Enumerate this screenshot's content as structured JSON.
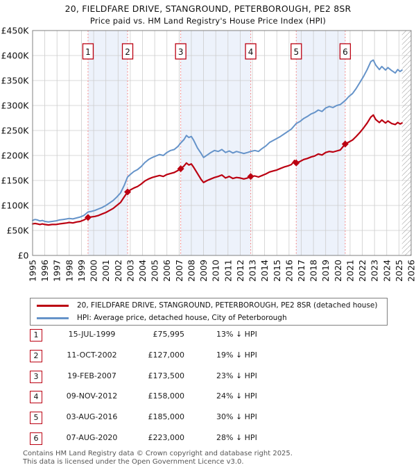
{
  "title": "20, FIELDFARE DRIVE, STANGROUND, PETERBOROUGH, PE2 8SR",
  "subtitle": "Price paid vs. HM Land Registry's House Price Index (HPI)",
  "legend": {
    "property_label": "20, FIELDFARE DRIVE, STANGROUND, PETERBOROUGH, PE2 8SR (detached house)",
    "hpi_label": "HPI: Average price, detached house, City of Peterborough"
  },
  "colors": {
    "property": "#bb0011",
    "hpi": "#6593c9",
    "sale_dash": "#f58a8a",
    "band": "#edf2fb",
    "grid": "#cccccc",
    "border": "#808080",
    "hatch": "#bbbbbb",
    "marker_box_border": "#bb0011",
    "text": "#111111"
  },
  "chart_data": {
    "type": "line",
    "title": "20, FIELDFARE DRIVE, STANGROUND, PETERBOROUGH, PE2 8SR",
    "subtitle": "Price paid vs. HM Land Registry's House Price Index (HPI)",
    "xlabel": "",
    "ylabel": "",
    "x_range": [
      1995,
      2026
    ],
    "y_range": [
      0,
      450
    ],
    "y_unit": "thousand GBP",
    "grid": true,
    "legend_position": "below",
    "x_ticks": [
      1995,
      1996,
      1997,
      1998,
      1999,
      2000,
      2001,
      2002,
      2003,
      2004,
      2005,
      2006,
      2007,
      2008,
      2009,
      2010,
      2011,
      2012,
      2013,
      2014,
      2015,
      2016,
      2017,
      2018,
      2019,
      2020,
      2021,
      2022,
      2023,
      2024,
      2025,
      2026
    ],
    "y_ticks": [
      {
        "v": 0,
        "label": "£0"
      },
      {
        "v": 50,
        "label": "£50K"
      },
      {
        "v": 100,
        "label": "£100K"
      },
      {
        "v": 150,
        "label": "£150K"
      },
      {
        "v": 200,
        "label": "£200K"
      },
      {
        "v": 250,
        "label": "£250K"
      },
      {
        "v": 300,
        "label": "£300K"
      },
      {
        "v": 350,
        "label": "£350K"
      },
      {
        "v": 400,
        "label": "£400K"
      },
      {
        "v": 450,
        "label": "£450K"
      }
    ],
    "shaded_bands": [
      [
        1999.54,
        2002.78
      ],
      [
        2007.13,
        2012.86
      ],
      [
        2016.59,
        2020.6
      ]
    ],
    "future_hatch_start": 2025.25,
    "sales": [
      {
        "n": "1",
        "year": 1999.54,
        "price_k": 76,
        "price": "£75,995"
      },
      {
        "n": "2",
        "year": 2002.78,
        "price_k": 127,
        "price": "£127,000"
      },
      {
        "n": "3",
        "year": 2007.13,
        "price_k": 173.5,
        "price": "£173,500"
      },
      {
        "n": "4",
        "year": 2012.86,
        "price_k": 158,
        "price": "£158,000"
      },
      {
        "n": "5",
        "year": 2016.59,
        "price_k": 185,
        "price": "£185,000"
      },
      {
        "n": "6",
        "year": 2020.6,
        "price_k": 223,
        "price": "£223,000"
      }
    ],
    "series": [
      {
        "name": "20, FIELDFARE DRIVE, STANGROUND, PETERBOROUGH, PE2 8SR (detached house)",
        "color": "#bb0011",
        "points": [
          [
            1995.0,
            63
          ],
          [
            1995.2,
            64
          ],
          [
            1995.4,
            63
          ],
          [
            1995.6,
            62
          ],
          [
            1995.8,
            63
          ],
          [
            1996.0,
            62
          ],
          [
            1996.3,
            61
          ],
          [
            1996.6,
            62
          ],
          [
            1996.9,
            62
          ],
          [
            1997.2,
            63
          ],
          [
            1997.5,
            64
          ],
          [
            1997.8,
            65
          ],
          [
            1998.0,
            66
          ],
          [
            1998.3,
            65
          ],
          [
            1998.6,
            67
          ],
          [
            1998.9,
            68
          ],
          [
            1999.2,
            71
          ],
          [
            1999.54,
            76
          ],
          [
            1999.8,
            77
          ],
          [
            2000.1,
            78
          ],
          [
            2000.4,
            80
          ],
          [
            2000.7,
            83
          ],
          [
            2001.0,
            86
          ],
          [
            2001.3,
            90
          ],
          [
            2001.6,
            94
          ],
          [
            2001.9,
            100
          ],
          [
            2002.2,
            106
          ],
          [
            2002.5,
            117
          ],
          [
            2002.78,
            127
          ],
          [
            2003.0,
            131
          ],
          [
            2003.3,
            135
          ],
          [
            2003.6,
            138
          ],
          [
            2003.9,
            143
          ],
          [
            2004.2,
            149
          ],
          [
            2004.5,
            153
          ],
          [
            2004.8,
            156
          ],
          [
            2005.1,
            158
          ],
          [
            2005.4,
            160
          ],
          [
            2005.7,
            158
          ],
          [
            2006.0,
            162
          ],
          [
            2006.3,
            164
          ],
          [
            2006.6,
            166
          ],
          [
            2006.9,
            170
          ],
          [
            2007.13,
            173.5
          ],
          [
            2007.4,
            179
          ],
          [
            2007.6,
            185
          ],
          [
            2007.8,
            181
          ],
          [
            2008.0,
            183
          ],
          [
            2008.2,
            176
          ],
          [
            2008.5,
            164
          ],
          [
            2008.8,
            152
          ],
          [
            2009.0,
            146
          ],
          [
            2009.3,
            150
          ],
          [
            2009.6,
            153
          ],
          [
            2009.9,
            156
          ],
          [
            2010.2,
            158
          ],
          [
            2010.5,
            161
          ],
          [
            2010.8,
            155
          ],
          [
            2011.1,
            158
          ],
          [
            2011.4,
            154
          ],
          [
            2011.7,
            156
          ],
          [
            2012.0,
            155
          ],
          [
            2012.3,
            153
          ],
          [
            2012.6,
            155
          ],
          [
            2012.86,
            158
          ],
          [
            2013.2,
            159
          ],
          [
            2013.5,
            157
          ],
          [
            2013.8,
            160
          ],
          [
            2014.1,
            163
          ],
          [
            2014.4,
            167
          ],
          [
            2014.7,
            169
          ],
          [
            2015.0,
            171
          ],
          [
            2015.3,
            174
          ],
          [
            2015.6,
            177
          ],
          [
            2015.9,
            179
          ],
          [
            2016.2,
            182
          ],
          [
            2016.45,
            190
          ],
          [
            2016.59,
            185
          ],
          [
            2016.9,
            188
          ],
          [
            2017.2,
            192
          ],
          [
            2017.5,
            194
          ],
          [
            2017.8,
            197
          ],
          [
            2018.1,
            199
          ],
          [
            2018.4,
            203
          ],
          [
            2018.7,
            201
          ],
          [
            2019.0,
            206
          ],
          [
            2019.3,
            208
          ],
          [
            2019.6,
            207
          ],
          [
            2019.9,
            209
          ],
          [
            2020.2,
            211
          ],
          [
            2020.6,
            223
          ],
          [
            2020.9,
            227
          ],
          [
            2021.2,
            231
          ],
          [
            2021.5,
            238
          ],
          [
            2021.8,
            246
          ],
          [
            2022.1,
            255
          ],
          [
            2022.4,
            265
          ],
          [
            2022.7,
            277
          ],
          [
            2022.9,
            281
          ],
          [
            2023.1,
            272
          ],
          [
            2023.4,
            266
          ],
          [
            2023.6,
            271
          ],
          [
            2023.9,
            265
          ],
          [
            2024.1,
            269
          ],
          [
            2024.4,
            264
          ],
          [
            2024.7,
            262
          ],
          [
            2024.9,
            266
          ],
          [
            2025.1,
            263
          ],
          [
            2025.25,
            265
          ]
        ]
      },
      {
        "name": "HPI: Average price, detached house, City of Peterborough",
        "color": "#6593c9",
        "points": [
          [
            1995.0,
            70
          ],
          [
            1995.2,
            72
          ],
          [
            1995.4,
            71
          ],
          [
            1995.6,
            69
          ],
          [
            1995.8,
            70
          ],
          [
            1996.0,
            68
          ],
          [
            1996.3,
            67
          ],
          [
            1996.6,
            68
          ],
          [
            1996.9,
            69
          ],
          [
            1997.2,
            71
          ],
          [
            1997.5,
            72
          ],
          [
            1997.8,
            73
          ],
          [
            1998.0,
            74
          ],
          [
            1998.3,
            73
          ],
          [
            1998.6,
            75
          ],
          [
            1998.9,
            77
          ],
          [
            1999.2,
            80
          ],
          [
            1999.54,
            87
          ],
          [
            1999.8,
            88
          ],
          [
            2000.1,
            90
          ],
          [
            2000.4,
            93
          ],
          [
            2000.7,
            96
          ],
          [
            2001.0,
            100
          ],
          [
            2001.3,
            105
          ],
          [
            2001.6,
            110
          ],
          [
            2001.9,
            117
          ],
          [
            2002.2,
            125
          ],
          [
            2002.5,
            140
          ],
          [
            2002.78,
            157
          ],
          [
            2003.0,
            162
          ],
          [
            2003.3,
            168
          ],
          [
            2003.6,
            172
          ],
          [
            2003.9,
            178
          ],
          [
            2004.2,
            186
          ],
          [
            2004.5,
            192
          ],
          [
            2004.8,
            196
          ],
          [
            2005.1,
            199
          ],
          [
            2005.4,
            202
          ],
          [
            2005.7,
            200
          ],
          [
            2006.0,
            206
          ],
          [
            2006.3,
            210
          ],
          [
            2006.6,
            212
          ],
          [
            2006.9,
            218
          ],
          [
            2007.13,
            225
          ],
          [
            2007.4,
            232
          ],
          [
            2007.6,
            240
          ],
          [
            2007.8,
            236
          ],
          [
            2008.0,
            238
          ],
          [
            2008.2,
            230
          ],
          [
            2008.5,
            215
          ],
          [
            2008.8,
            204
          ],
          [
            2009.0,
            196
          ],
          [
            2009.3,
            201
          ],
          [
            2009.6,
            206
          ],
          [
            2009.9,
            210
          ],
          [
            2010.2,
            208
          ],
          [
            2010.5,
            212
          ],
          [
            2010.8,
            206
          ],
          [
            2011.1,
            209
          ],
          [
            2011.4,
            205
          ],
          [
            2011.7,
            208
          ],
          [
            2012.0,
            206
          ],
          [
            2012.3,
            204
          ],
          [
            2012.6,
            206
          ],
          [
            2012.86,
            208
          ],
          [
            2013.2,
            210
          ],
          [
            2013.5,
            208
          ],
          [
            2013.8,
            214
          ],
          [
            2014.1,
            219
          ],
          [
            2014.4,
            226
          ],
          [
            2014.7,
            230
          ],
          [
            2015.0,
            234
          ],
          [
            2015.3,
            238
          ],
          [
            2015.6,
            243
          ],
          [
            2015.9,
            248
          ],
          [
            2016.2,
            253
          ],
          [
            2016.59,
            264
          ],
          [
            2016.9,
            268
          ],
          [
            2017.2,
            274
          ],
          [
            2017.5,
            278
          ],
          [
            2017.8,
            283
          ],
          [
            2018.1,
            286
          ],
          [
            2018.4,
            291
          ],
          [
            2018.7,
            288
          ],
          [
            2019.0,
            295
          ],
          [
            2019.3,
            298
          ],
          [
            2019.6,
            296
          ],
          [
            2019.9,
            300
          ],
          [
            2020.2,
            302
          ],
          [
            2020.6,
            310
          ],
          [
            2020.9,
            318
          ],
          [
            2021.2,
            324
          ],
          [
            2021.5,
            334
          ],
          [
            2021.8,
            346
          ],
          [
            2022.1,
            358
          ],
          [
            2022.4,
            372
          ],
          [
            2022.7,
            388
          ],
          [
            2022.9,
            391
          ],
          [
            2023.1,
            381
          ],
          [
            2023.4,
            372
          ],
          [
            2023.6,
            378
          ],
          [
            2023.9,
            371
          ],
          [
            2024.1,
            376
          ],
          [
            2024.4,
            370
          ],
          [
            2024.7,
            365
          ],
          [
            2024.9,
            372
          ],
          [
            2025.1,
            368
          ],
          [
            2025.25,
            371
          ]
        ]
      }
    ]
  },
  "table": {
    "rows": [
      {
        "num": "1",
        "date": "15-JUL-1999",
        "price": "£75,995",
        "diff": "13% ↓ HPI"
      },
      {
        "num": "2",
        "date": "11-OCT-2002",
        "price": "£127,000",
        "diff": "19% ↓ HPI"
      },
      {
        "num": "3",
        "date": "19-FEB-2007",
        "price": "£173,500",
        "diff": "23% ↓ HPI"
      },
      {
        "num": "4",
        "date": "09-NOV-2012",
        "price": "£158,000",
        "diff": "24% ↓ HPI"
      },
      {
        "num": "5",
        "date": "03-AUG-2016",
        "price": "£185,000",
        "diff": "30% ↓ HPI"
      },
      {
        "num": "6",
        "date": "07-AUG-2020",
        "price": "£223,000",
        "diff": "28% ↓ HPI"
      }
    ]
  },
  "footer": {
    "line1": "Contains HM Land Registry data © Crown copyright and database right 2025.",
    "line2": "This data is licensed under the Open Government Licence v3.0."
  }
}
